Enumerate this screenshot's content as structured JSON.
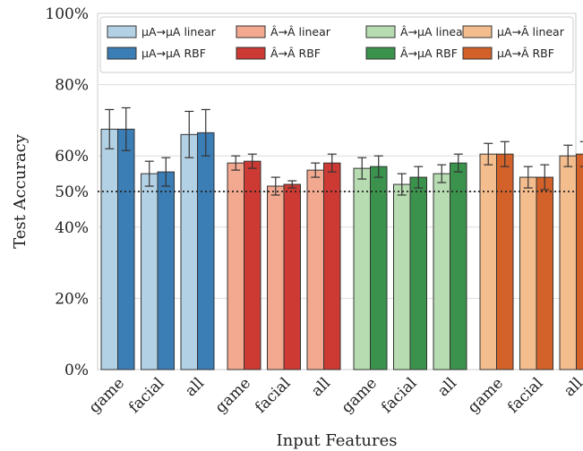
{
  "chart_data": {
    "type": "bar",
    "xlabel": "Input Features",
    "ylabel": "Test Accuracy",
    "ylim": [
      0,
      100
    ],
    "yticks": [
      {
        "value": 0,
        "label": "0%"
      },
      {
        "value": 20,
        "label": "20%"
      },
      {
        "value": 40,
        "label": "40%"
      },
      {
        "value": 50,
        "label": "50%"
      },
      {
        "value": 60,
        "label": "60%"
      },
      {
        "value": 80,
        "label": "80%"
      },
      {
        "value": 100,
        "label": "100%"
      }
    ],
    "reference_line": 50,
    "grid": "horizontal",
    "legend_position": "top",
    "categories": [
      "game",
      "facial",
      "all"
    ],
    "groups": [
      {
        "series": [
          {
            "name": "μA→μA linear",
            "color": "#b3d1e5",
            "values": [
              67.5,
              55.0,
              66.0
            ],
            "errors": [
              5.5,
              3.5,
              6.5
            ]
          },
          {
            "name": "μA→μA RBF",
            "color": "#3b7db5",
            "values": [
              67.5,
              55.5,
              66.5
            ],
            "errors": [
              6.0,
              4.0,
              6.5
            ]
          }
        ]
      },
      {
        "series": [
          {
            "name": "Â→Â linear",
            "color": "#f2a98f",
            "values": [
              58.0,
              51.5,
              56.0
            ],
            "errors": [
              2.0,
              2.5,
              2.0
            ]
          },
          {
            "name": "Â→Â RBF",
            "color": "#cc3a33",
            "values": [
              58.5,
              52.0,
              58.0
            ],
            "errors": [
              2.0,
              1.0,
              2.5
            ]
          }
        ]
      },
      {
        "series": [
          {
            "name": "Â→μA linear",
            "color": "#b7dcb1",
            "values": [
              56.5,
              52.0,
              55.0
            ],
            "errors": [
              3.0,
              3.0,
              2.5
            ]
          },
          {
            "name": "Â→μA RBF",
            "color": "#3a924d",
            "values": [
              57.0,
              54.0,
              58.0
            ],
            "errors": [
              3.0,
              3.0,
              2.5
            ]
          }
        ]
      },
      {
        "series": [
          {
            "name": "μA→Â linear",
            "color": "#f4bd8e",
            "values": [
              60.5,
              54.0,
              60.0
            ],
            "errors": [
              3.0,
              3.0,
              3.0
            ]
          },
          {
            "name": "μA→Â RBF",
            "color": "#d2622a",
            "values": [
              60.5,
              54.0,
              60.5
            ],
            "errors": [
              3.5,
              3.5,
              3.5
            ]
          }
        ]
      }
    ]
  }
}
